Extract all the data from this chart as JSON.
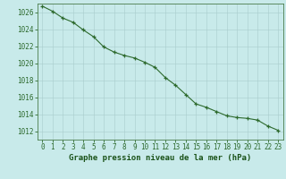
{
  "x": [
    0,
    1,
    2,
    3,
    4,
    5,
    6,
    7,
    8,
    9,
    10,
    11,
    12,
    13,
    14,
    15,
    16,
    17,
    18,
    19,
    20,
    21,
    22,
    23
  ],
  "y": [
    1026.7,
    1026.1,
    1025.3,
    1024.8,
    1023.9,
    1023.1,
    1021.9,
    1021.3,
    1020.9,
    1020.6,
    1020.1,
    1019.5,
    1018.3,
    1017.4,
    1016.3,
    1015.2,
    1014.8,
    1014.3,
    1013.8,
    1013.6,
    1013.5,
    1013.3,
    1012.6,
    1012.1
  ],
  "line_color": "#2d6a2d",
  "marker": "+",
  "marker_color": "#2d6a2d",
  "bg_color": "#c8eaea",
  "grid_color": "#a8cccc",
  "xlabel": "Graphe pression niveau de la mer (hPa)",
  "xlabel_color": "#1a5218",
  "tick_color": "#2d6a2d",
  "spine_color": "#4a7c4a",
  "ylim": [
    1011,
    1027
  ],
  "xlim": [
    -0.5,
    23.5
  ],
  "yticks": [
    1012,
    1014,
    1016,
    1018,
    1020,
    1022,
    1024,
    1026
  ],
  "xticks": [
    0,
    1,
    2,
    3,
    4,
    5,
    6,
    7,
    8,
    9,
    10,
    11,
    12,
    13,
    14,
    15,
    16,
    17,
    18,
    19,
    20,
    21,
    22,
    23
  ],
  "xlabel_fontsize": 6.5,
  "tick_fontsize": 5.5,
  "linewidth": 0.8,
  "markersize": 3.5,
  "markeredgewidth": 0.9
}
